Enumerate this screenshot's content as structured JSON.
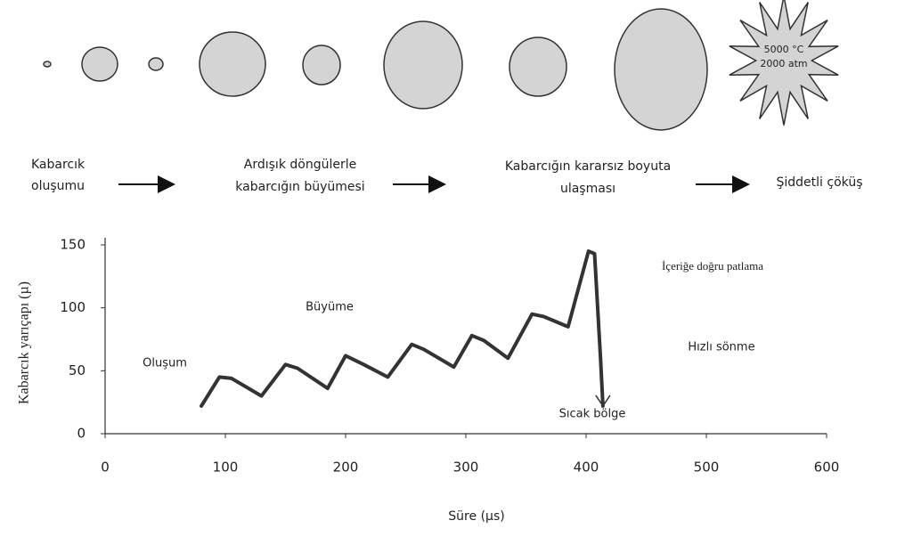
{
  "diagram": {
    "stages": [
      [
        "Kabarcık",
        "oluşumu"
      ],
      [
        "Ardışık döngülerle",
        "kabarcığın büyümesi"
      ],
      [
        "Kabarcığın kararsız boyuta",
        "ulaşması"
      ],
      [
        "Şiddetli çöküş"
      ]
    ],
    "collapse_conditions": [
      "5000 °C",
      "2000 atm"
    ]
  },
  "chart_data": {
    "type": "line",
    "x_label": "Süre (µs)",
    "y_label": "Kabarcık yarıçapı (µ)",
    "color": "#333333",
    "x": [
      80,
      95,
      105,
      130,
      150,
      160,
      185,
      200,
      215,
      235,
      255,
      265,
      290,
      305,
      315,
      335,
      355,
      365,
      385,
      402,
      407,
      412,
      414
    ],
    "values": [
      22,
      45,
      44,
      30,
      55,
      52,
      36,
      62,
      55,
      45,
      71,
      67,
      53,
      78,
      74,
      60,
      95,
      93,
      85,
      145,
      143,
      60,
      22
    ],
    "xlim": [
      0,
      600
    ],
    "ylim": [
      0,
      150
    ],
    "xticks": [
      0,
      100,
      200,
      300,
      400,
      500,
      600
    ],
    "yticks": [
      0,
      50,
      100,
      150
    ],
    "annotations": [
      "Oluşum",
      "Büyüme",
      "İçeriğe doğru patlama",
      "Hızlı sönme",
      "Sıcak bölge"
    ]
  }
}
